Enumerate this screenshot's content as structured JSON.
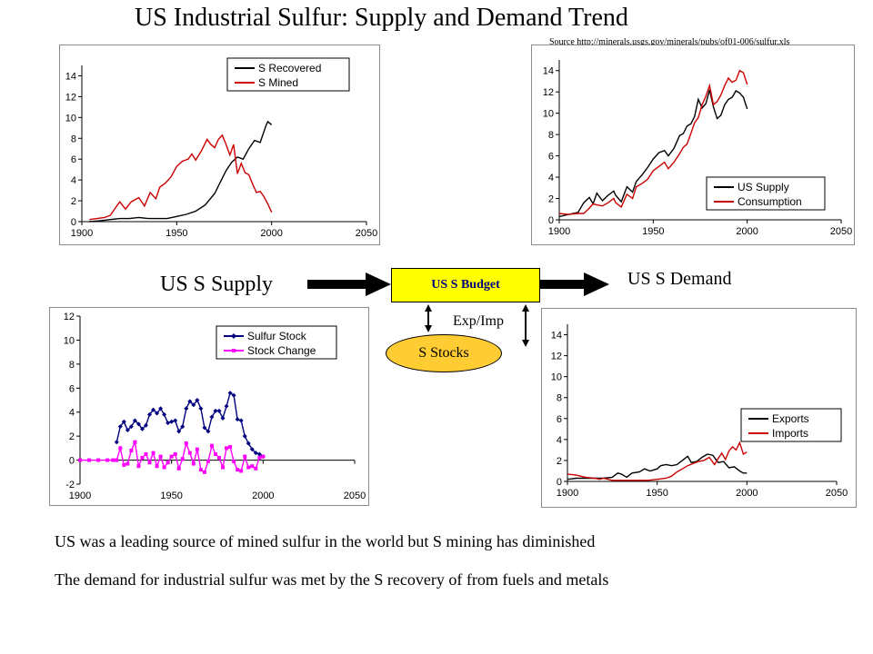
{
  "title": "US Industrial Sulfur: Supply and Demand Trend",
  "source": "Source http://minerals.usgs.gov/minerals/pubs/of01-006/sulfur.xls",
  "diagram": {
    "supply_label": "US S Supply",
    "demand_label": "US S Demand",
    "budget_label": "US S Budget",
    "stocks_label": "S Stocks",
    "expimp_label": "Exp/Imp",
    "budget_color": "#ffff00",
    "stocks_color": "#ffcc33",
    "budget_text_color": "#000080"
  },
  "notes": [
    "US was a leading source of mined sulfur in the world but S mining has diminished",
    "The demand for industrial sulfur was met by the S recovery of from fuels and metals"
  ],
  "chart_data": [
    {
      "type": "line",
      "xlim": [
        1900,
        2050
      ],
      "ylim": [
        0,
        15
      ],
      "xticks": [
        1900,
        1950,
        2000,
        2050
      ],
      "yticks": [
        0,
        2,
        4,
        6,
        8,
        10,
        12,
        14
      ],
      "legend_position": "top-right",
      "series": [
        {
          "name": "S Recovered",
          "color": "#000000",
          "x": [
            1904,
            1910,
            1915,
            1920,
            1925,
            1930,
            1935,
            1940,
            1945,
            1950,
            1955,
            1960,
            1965,
            1970,
            1973,
            1976,
            1979,
            1982,
            1985,
            1988,
            1991,
            1994,
            1997,
            1998,
            2000
          ],
          "y": [
            0,
            0.1,
            0.2,
            0.3,
            0.3,
            0.4,
            0.3,
            0.3,
            0.3,
            0.5,
            0.7,
            1.0,
            1.6,
            2.7,
            3.8,
            4.9,
            5.7,
            6.2,
            6.0,
            7.0,
            7.8,
            7.6,
            9.2,
            9.6,
            9.3
          ]
        },
        {
          "name": "S Mined",
          "color": "#cc0000",
          "x": [
            1904,
            1908,
            1912,
            1915,
            1918,
            1920,
            1923,
            1926,
            1929,
            1930,
            1933,
            1936,
            1939,
            1941,
            1944,
            1947,
            1950,
            1953,
            1956,
            1958,
            1960,
            1963,
            1966,
            1968,
            1970,
            1972,
            1974,
            1976,
            1978,
            1980,
            1982,
            1984,
            1986,
            1988,
            1990,
            1992,
            1994,
            1996,
            1998,
            2000
          ],
          "y": [
            0.2,
            0.3,
            0.4,
            0.6,
            1.4,
            1.9,
            1.2,
            1.9,
            2.2,
            2.3,
            1.5,
            2.8,
            2.2,
            3.3,
            3.7,
            4.3,
            5.3,
            5.8,
            6.0,
            6.5,
            5.9,
            6.8,
            7.9,
            7.4,
            7.1,
            7.9,
            8.3,
            7.4,
            6.4,
            7.4,
            4.6,
            5.6,
            4.7,
            4.5,
            3.6,
            2.8,
            2.9,
            2.4,
            1.7,
            0.9
          ]
        }
      ]
    },
    {
      "type": "line",
      "xlim": [
        1900,
        2050
      ],
      "ylim": [
        0,
        15
      ],
      "xticks": [
        1900,
        1950,
        2000,
        2050
      ],
      "yticks": [
        0,
        2,
        4,
        6,
        8,
        10,
        12,
        14
      ],
      "legend_position": "bottom-right",
      "series": [
        {
          "name": "US Supply",
          "color": "#000000",
          "x": [
            1900,
            1905,
            1910,
            1913,
            1916,
            1918,
            1920,
            1923,
            1926,
            1929,
            1930,
            1933,
            1936,
            1939,
            1941,
            1944,
            1947,
            1950,
            1953,
            1956,
            1958,
            1961,
            1964,
            1966,
            1968,
            1970,
            1972,
            1974,
            1976,
            1978,
            1980,
            1982,
            1984,
            1986,
            1988,
            1990,
            1992,
            1994,
            1996,
            1998,
            2000
          ],
          "y": [
            0.3,
            0.5,
            0.7,
            1.6,
            2.1,
            1.5,
            2.5,
            1.8,
            2.3,
            2.7,
            2.3,
            1.7,
            3.1,
            2.6,
            3.6,
            4.2,
            4.9,
            5.7,
            6.3,
            6.5,
            6.0,
            6.7,
            7.9,
            8.1,
            8.8,
            9.0,
            9.7,
            11.3,
            10.5,
            10.9,
            12.2,
            10.6,
            9.5,
            9.8,
            10.8,
            11.3,
            11.5,
            12.1,
            11.9,
            11.5,
            10.4
          ]
        },
        {
          "name": "Consumption",
          "color": "#cc0000",
          "x": [
            1900,
            1905,
            1910,
            1913,
            1916,
            1918,
            1920,
            1923,
            1926,
            1929,
            1930,
            1933,
            1936,
            1939,
            1941,
            1944,
            1947,
            1950,
            1953,
            1956,
            1958,
            1961,
            1964,
            1966,
            1968,
            1970,
            1972,
            1974,
            1976,
            1978,
            1980,
            1982,
            1984,
            1986,
            1988,
            1990,
            1992,
            1994,
            1996,
            1998,
            2000
          ],
          "y": [
            0.6,
            0.5,
            0.6,
            0.6,
            1.1,
            1.5,
            1.4,
            1.3,
            1.6,
            2.0,
            1.6,
            1.2,
            2.4,
            2.0,
            3.1,
            3.4,
            3.8,
            4.6,
            5.0,
            5.4,
            4.8,
            5.4,
            6.2,
            6.8,
            7.1,
            8.1,
            9.1,
            9.6,
            10.8,
            11.6,
            12.6,
            10.8,
            11.1,
            11.7,
            12.6,
            13.3,
            12.9,
            13.1,
            14.0,
            13.8,
            12.7
          ]
        }
      ]
    },
    {
      "type": "line",
      "xlim": [
        1900,
        2050
      ],
      "ylim": [
        -2,
        12
      ],
      "xticks": [
        1900,
        1950,
        2000,
        2050
      ],
      "yticks": [
        -2,
        0,
        2,
        4,
        6,
        8,
        10,
        12
      ],
      "legend_position": "top-right",
      "series": [
        {
          "name": "Sulfur Stock",
          "color": "#000080",
          "x": [
            1920,
            1922,
            1924,
            1926,
            1928,
            1930,
            1932,
            1934,
            1936,
            1938,
            1940,
            1942,
            1944,
            1946,
            1948,
            1950,
            1952,
            1954,
            1956,
            1958,
            1960,
            1962,
            1964,
            1966,
            1968,
            1970,
            1972,
            1974,
            1976,
            1978,
            1980,
            1982,
            1984,
            1986,
            1988,
            1990,
            1992,
            1994,
            1996,
            1998,
            2000
          ],
          "y": [
            1.5,
            2.8,
            3.2,
            2.5,
            2.8,
            3.3,
            3.0,
            2.6,
            2.9,
            3.8,
            4.2,
            3.9,
            4.3,
            3.8,
            3.1,
            3.2,
            3.3,
            2.4,
            2.8,
            4.3,
            4.9,
            4.6,
            5.0,
            4.3,
            2.7,
            2.4,
            3.6,
            4.1,
            4.1,
            3.5,
            4.5,
            5.6,
            5.4,
            3.4,
            3.3,
            2.0,
            1.4,
            0.9,
            0.6,
            0.5,
            0.3
          ]
        },
        {
          "name": "Stock Change",
          "color": "#ff00ff",
          "x": [
            1900,
            1905,
            1910,
            1915,
            1918,
            1920,
            1922,
            1924,
            1926,
            1928,
            1930,
            1932,
            1934,
            1936,
            1938,
            1940,
            1942,
            1944,
            1946,
            1948,
            1950,
            1952,
            1954,
            1956,
            1958,
            1960,
            1962,
            1964,
            1966,
            1968,
            1970,
            1972,
            1974,
            1976,
            1978,
            1980,
            1982,
            1984,
            1986,
            1988,
            1990,
            1992,
            1994,
            1996,
            1998,
            2000
          ],
          "y": [
            0,
            0,
            0,
            0,
            0,
            0,
            1.0,
            -0.4,
            -0.3,
            0.8,
            1.5,
            -0.5,
            0.2,
            0.5,
            -0.2,
            0.6,
            -0.5,
            0.3,
            -0.6,
            -0.2,
            0.3,
            0.5,
            -0.7,
            0.1,
            1.4,
            0.6,
            -0.3,
            0.9,
            -0.8,
            -1.0,
            -0.1,
            1.2,
            0.5,
            0.2,
            -0.6,
            1.0,
            1.1,
            -0.1,
            -0.8,
            -0.9,
            0.3,
            -0.6,
            -0.5,
            -0.7,
            0.2,
            0.3
          ]
        }
      ]
    },
    {
      "type": "line",
      "xlim": [
        1900,
        2050
      ],
      "ylim": [
        0,
        15
      ],
      "xticks": [
        1900,
        1950,
        2000,
        2050
      ],
      "yticks": [
        0,
        2,
        4,
        6,
        8,
        10,
        12,
        14
      ],
      "legend_position": "right",
      "series": [
        {
          "name": "Exports",
          "color": "#000000",
          "x": [
            1900,
            1905,
            1910,
            1915,
            1920,
            1925,
            1928,
            1930,
            1933,
            1936,
            1940,
            1943,
            1946,
            1950,
            1952,
            1955,
            1958,
            1961,
            1964,
            1967,
            1969,
            1972,
            1975,
            1978,
            1981,
            1984,
            1987,
            1990,
            1993,
            1996,
            1998,
            2000
          ],
          "y": [
            0.2,
            0.3,
            0.3,
            0.3,
            0.3,
            0.4,
            0.8,
            0.7,
            0.4,
            0.8,
            0.9,
            1.2,
            1.0,
            1.2,
            1.5,
            1.6,
            1.5,
            1.6,
            2.0,
            2.4,
            1.8,
            1.9,
            2.3,
            2.6,
            2.5,
            1.8,
            1.9,
            1.3,
            1.4,
            1.0,
            0.8,
            0.8
          ]
        },
        {
          "name": "Imports",
          "color": "#cc0000",
          "x": [
            1900,
            1905,
            1910,
            1915,
            1918,
            1920,
            1925,
            1930,
            1935,
            1940,
            1945,
            1950,
            1955,
            1958,
            1961,
            1964,
            1967,
            1970,
            1973,
            1976,
            1979,
            1982,
            1984,
            1986,
            1988,
            1990,
            1992,
            1994,
            1996,
            1998,
            2000
          ],
          "y": [
            0.7,
            0.6,
            0.4,
            0.3,
            0.2,
            0.3,
            0.1,
            0.1,
            0.1,
            0.1,
            0.1,
            0.2,
            0.3,
            0.5,
            0.9,
            1.2,
            1.5,
            1.7,
            1.9,
            2.0,
            2.3,
            1.6,
            2.2,
            2.7,
            2.1,
            2.9,
            3.3,
            3.0,
            3.7,
            2.6,
            2.8
          ]
        }
      ]
    }
  ]
}
